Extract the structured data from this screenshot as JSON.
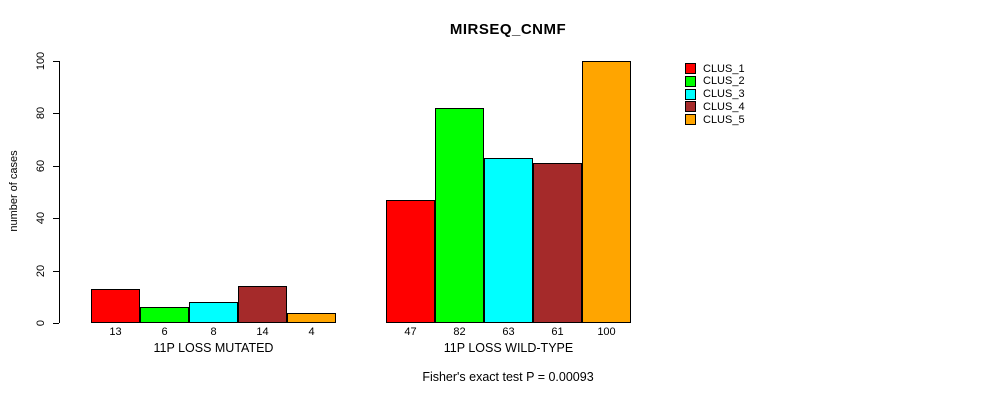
{
  "chart_data": {
    "type": "bar",
    "title": "MIRSEQ_CNMF",
    "ylabel": "number of cases",
    "xlabel": "",
    "ylim": [
      0,
      100
    ],
    "yticks": [
      0,
      20,
      40,
      60,
      80,
      100
    ],
    "grid": false,
    "legend_position": "top-right",
    "categories": [
      "11P LOSS MUTATED",
      "11P LOSS WILD-TYPE"
    ],
    "series": [
      {
        "name": "CLUS_1",
        "color": "#FF0000",
        "values": [
          13,
          47
        ]
      },
      {
        "name": "CLUS_2",
        "color": "#00FF00",
        "values": [
          6,
          82
        ]
      },
      {
        "name": "CLUS_3",
        "color": "#00FFFF",
        "values": [
          8,
          63
        ]
      },
      {
        "name": "CLUS_4",
        "color": "#A52A2A",
        "values": [
          14,
          61
        ]
      },
      {
        "name": "CLUS_5",
        "color": "#FFA500",
        "values": [
          4,
          100
        ]
      }
    ],
    "bar_value_labels_shown": true,
    "annotation": "Fisher's exact test P = 0.00093"
  }
}
